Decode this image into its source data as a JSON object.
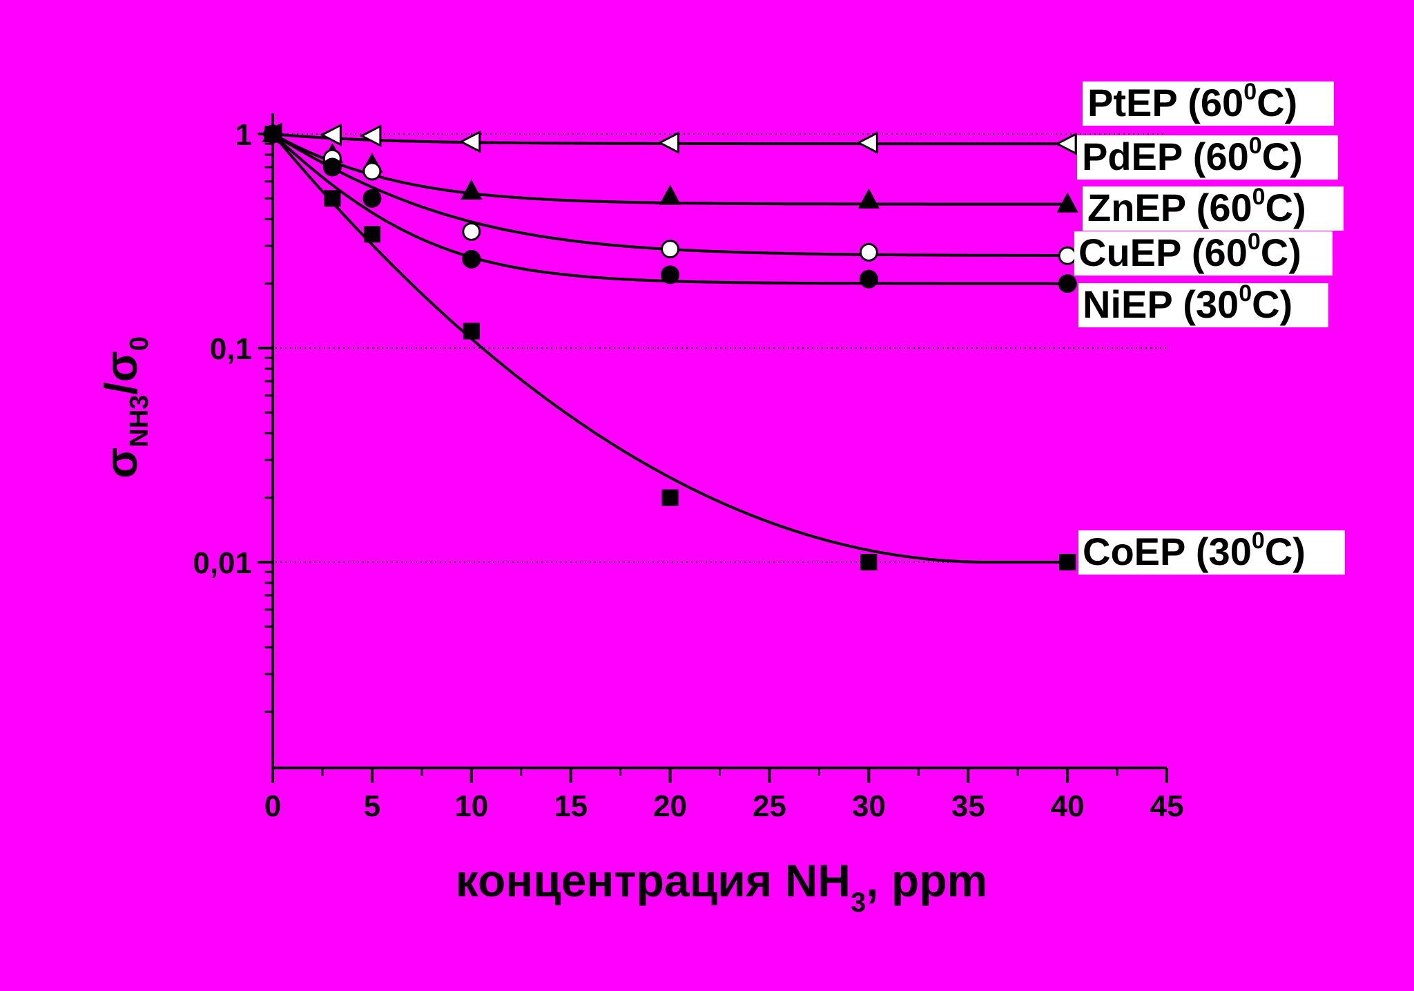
{
  "background": "#ff00ff",
  "chart_data": {
    "type": "scatter",
    "y_scale": "log",
    "xlim": [
      0,
      45
    ],
    "ylim": [
      0.0007,
      1.1
    ],
    "x_ticks": [
      0,
      5,
      10,
      15,
      20,
      25,
      30,
      35,
      40,
      45
    ],
    "x_tick_labels": [
      "0",
      "5",
      "10",
      "15",
      "20",
      "25",
      "30",
      "35",
      "40",
      "45"
    ],
    "y_ticks": [
      1,
      0.1,
      0.01
    ],
    "y_tick_labels": [
      "1",
      "0,1",
      "0,01"
    ],
    "grid": "horizontal dotted lines at major y ticks",
    "xlabel": {
      "main": "концентрация NH",
      "sub": "3",
      "tail": ", ppm"
    },
    "ylabel": {
      "sigma": "σ",
      "sub": "NH3",
      "slash": "/",
      "sigma0": "σ",
      "sub0": "0"
    },
    "series": [
      {
        "name": "PtEP",
        "label": {
          "prefix": "PtEP (60",
          "sup": "0",
          "suffix": "C)"
        },
        "marker": "triangle-left",
        "fill": "white",
        "x": [
          0,
          3,
          5,
          10,
          20,
          30,
          40
        ],
        "y": [
          1,
          0.99,
          0.98,
          0.92,
          0.91,
          0.91,
          0.9
        ]
      },
      {
        "name": "PdEP",
        "label": {
          "prefix": "PdEP (60",
          "sup": "0",
          "suffix": "C)"
        },
        "marker": "triangle-up",
        "fill": "black",
        "x": [
          0,
          3,
          5,
          10,
          20,
          30,
          40
        ],
        "y": [
          1,
          0.8,
          0.72,
          0.54,
          0.51,
          0.49,
          0.47
        ]
      },
      {
        "name": "ZnEP",
        "label": {
          "prefix": "ZnEP (60",
          "sup": "0",
          "suffix": "C)"
        },
        "marker": "circle",
        "fill": "white",
        "x": [
          0,
          3,
          5,
          10,
          20,
          30,
          40
        ],
        "y": [
          1,
          0.77,
          0.67,
          0.35,
          0.29,
          0.28,
          0.27
        ]
      },
      {
        "name": "CuEP",
        "label": {
          "prefix": "CuEP (60",
          "sup": "0",
          "suffix": "C)"
        },
        "marker": "circle",
        "fill": "black",
        "x": [
          0,
          3,
          5,
          10,
          20,
          30,
          40
        ],
        "y": [
          1,
          0.7,
          0.5,
          0.26,
          0.22,
          0.21,
          0.2
        ]
      },
      {
        "name": "NiEP",
        "label": {
          "prefix": "NiEP (30",
          "sup": "0",
          "suffix": "C)"
        },
        "marker": "none",
        "fill": "none",
        "x": [],
        "y": []
      },
      {
        "name": "CoEP",
        "label": {
          "prefix": "CoEP (30",
          "sup": "0",
          "suffix": "C)"
        },
        "marker": "square",
        "fill": "black",
        "x": [
          0,
          3,
          5,
          10,
          20,
          30,
          40
        ],
        "y": [
          1,
          0.5,
          0.34,
          0.12,
          0.02,
          0.01,
          0.01
        ]
      }
    ]
  }
}
